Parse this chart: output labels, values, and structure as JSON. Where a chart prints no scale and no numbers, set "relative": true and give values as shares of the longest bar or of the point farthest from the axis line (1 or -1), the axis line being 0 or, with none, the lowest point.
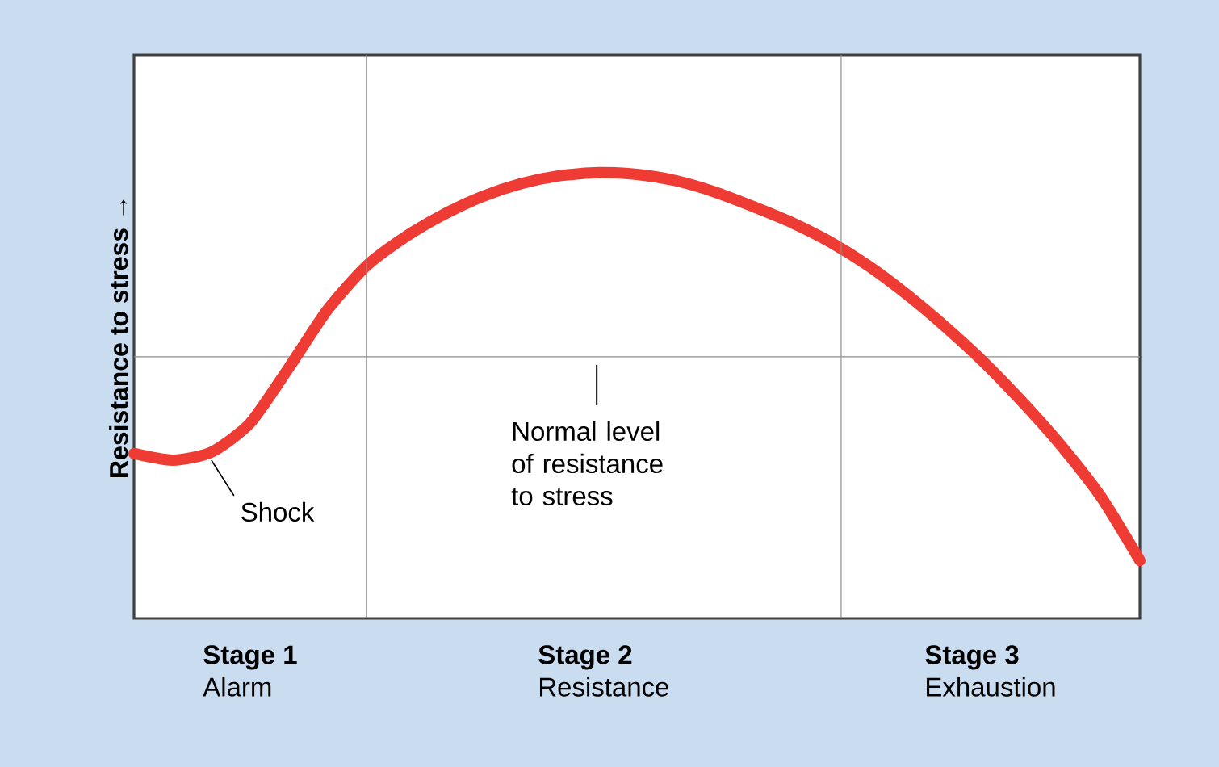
{
  "chart_data": {
    "type": "line",
    "relative": true,
    "ylabel": "Resistance to stress →",
    "color": "#ee3b33",
    "categories": [
      null,
      null,
      null,
      null,
      null,
      null,
      null,
      null,
      null,
      null,
      null,
      null,
      null,
      null,
      null,
      null,
      null,
      null,
      null,
      null,
      null,
      null,
      null,
      null,
      null,
      null,
      null
    ],
    "values": [
      0.37,
      0.355,
      0.373,
      0.438,
      0.562,
      0.692,
      0.79,
      0.855,
      0.906,
      0.946,
      0.975,
      0.993,
      1.0,
      0.996,
      0.982,
      0.957,
      0.924,
      0.888,
      0.844,
      0.79,
      0.725,
      0.652,
      0.572,
      0.482,
      0.384,
      0.272,
      0.13
    ],
    "ref_lines": [
      {
        "axis": "y",
        "value": 0.587,
        "label": "Normal level of resistance to stress"
      }
    ],
    "annotations": [
      "Stage 1",
      "Alarm",
      "Stage 2",
      "Resistance",
      "Stage 3",
      "Exhaustion",
      "Shock"
    ]
  }
}
